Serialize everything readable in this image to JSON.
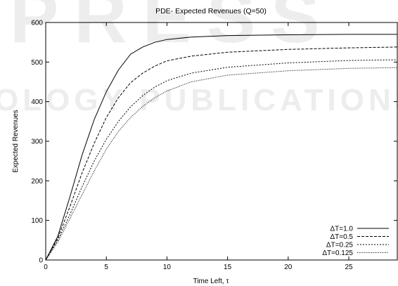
{
  "watermark": {
    "top": "PRESS",
    "bottom": "OLOGY PUBLICATIONS"
  },
  "colors": {
    "series": "#000000",
    "watermark": "#bebebe"
  },
  "chart_data": {
    "type": "line",
    "title": "PDE- Expected Revenues (Q=50)",
    "xlabel": "Time Left, τ",
    "ylabel": "Expected Revenues",
    "xlim": [
      0,
      29
    ],
    "ylim": [
      0,
      600
    ],
    "xticks": [
      0,
      5,
      10,
      15,
      20,
      25
    ],
    "yticks": [
      0,
      100,
      200,
      300,
      400,
      500,
      600
    ],
    "grid": false,
    "legend_position": "bottom-right",
    "series": [
      {
        "name": "ΔT=1.0",
        "style": "solid",
        "x": [
          0,
          1,
          2,
          3,
          4,
          5,
          6,
          7,
          8,
          9,
          10,
          12,
          15,
          20,
          25,
          29
        ],
        "y": [
          0,
          60,
          160,
          265,
          355,
          425,
          480,
          520,
          538,
          550,
          557,
          563,
          567,
          569,
          570,
          570
        ]
      },
      {
        "name": "ΔT=0.5",
        "style": "dashed",
        "x": [
          0,
          1,
          2,
          3,
          4,
          5,
          6,
          7,
          8,
          9,
          10,
          12,
          15,
          20,
          25,
          29
        ],
        "y": [
          0,
          55,
          135,
          220,
          295,
          360,
          410,
          448,
          472,
          490,
          503,
          515,
          525,
          532,
          536,
          538
        ]
      },
      {
        "name": "ΔT=0.25",
        "style": "short-dashed",
        "x": [
          0,
          1,
          2,
          3,
          4,
          5,
          6,
          7,
          8,
          9,
          10,
          12,
          15,
          20,
          25,
          29
        ],
        "y": [
          0,
          50,
          115,
          185,
          250,
          305,
          350,
          387,
          415,
          437,
          453,
          472,
          487,
          498,
          504,
          506
        ]
      },
      {
        "name": "ΔT=0.125",
        "style": "dotted",
        "x": [
          0,
          1,
          2,
          3,
          4,
          5,
          6,
          7,
          8,
          9,
          10,
          12,
          15,
          20,
          25,
          29
        ],
        "y": [
          0,
          45,
          105,
          165,
          225,
          280,
          325,
          360,
          388,
          410,
          427,
          450,
          467,
          478,
          484,
          486
        ]
      }
    ]
  }
}
